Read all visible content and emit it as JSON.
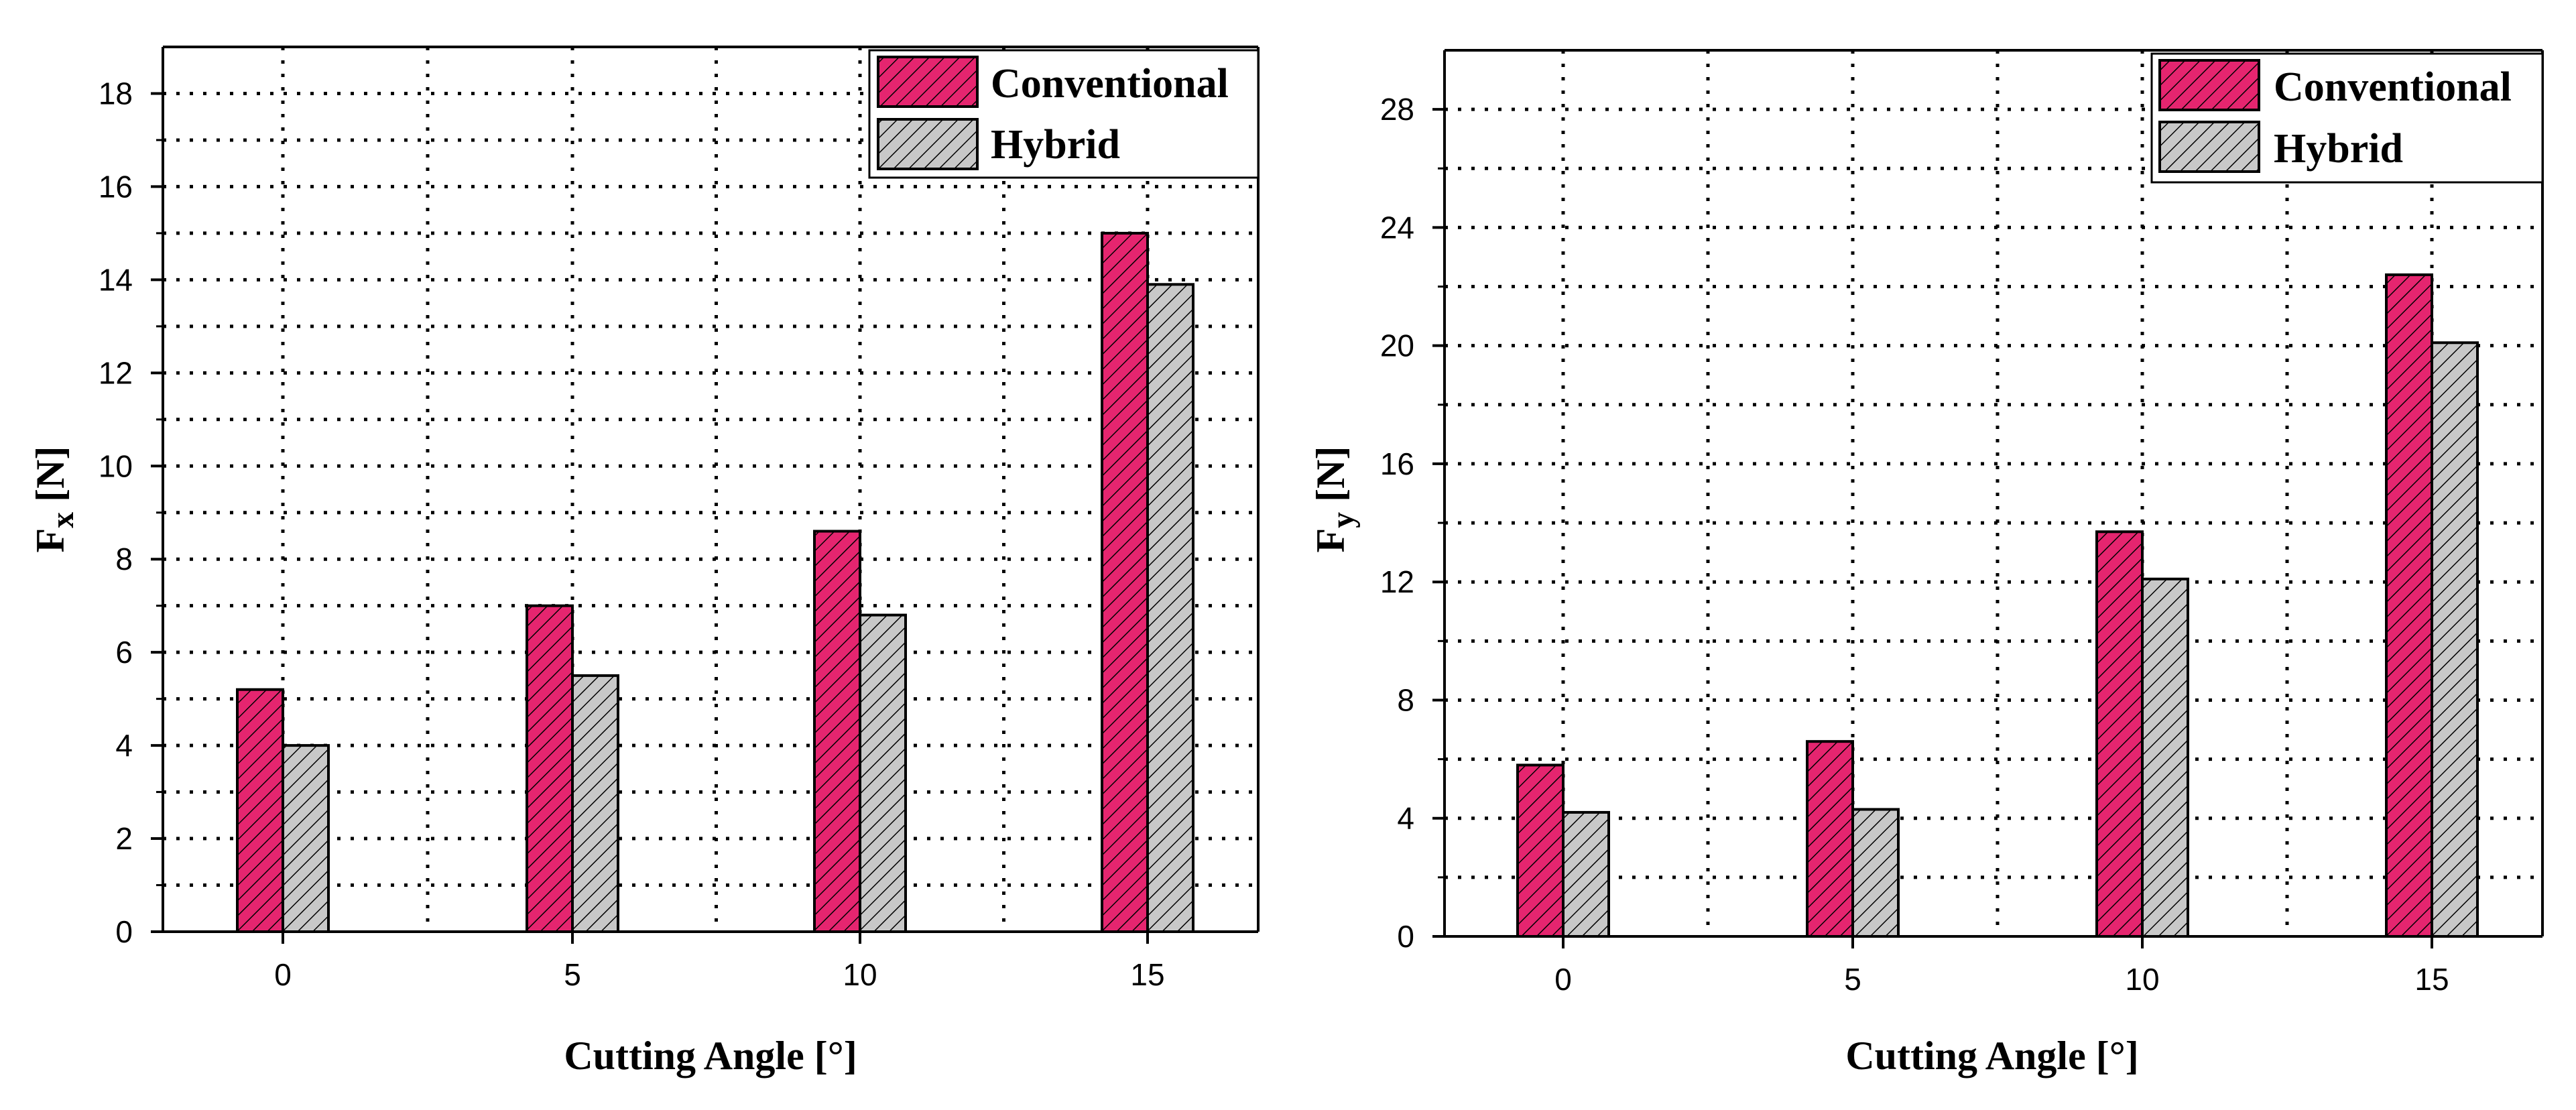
{
  "chart_data": [
    {
      "type": "bar",
      "title": "",
      "xlabel": "Cutting Angle [°]",
      "ylabel_main": "F",
      "ylabel_sub": "x",
      "ylabel_unit": " [N]",
      "categories": [
        "0",
        "5",
        "10",
        "15"
      ],
      "series": [
        {
          "name": "Conventional",
          "values": [
            5.2,
            7.0,
            8.6,
            15.0
          ]
        },
        {
          "name": "Hybrid",
          "values": [
            4.0,
            5.5,
            6.8,
            13.9
          ]
        }
      ],
      "ylim": [
        0,
        19
      ],
      "yticks": [
        0,
        2,
        4,
        6,
        8,
        10,
        12,
        14,
        16,
        18
      ],
      "grid": true,
      "legend": "top-right"
    },
    {
      "type": "bar",
      "title": "",
      "xlabel": "Cutting Angle [°]",
      "ylabel_main": "F",
      "ylabel_sub": "y",
      "ylabel_unit": " [N]",
      "categories": [
        "0",
        "5",
        "10",
        "15"
      ],
      "series": [
        {
          "name": "Conventional",
          "values": [
            5.8,
            6.6,
            13.7,
            22.4
          ]
        },
        {
          "name": "Hybrid",
          "values": [
            4.2,
            4.3,
            12.1,
            20.1
          ]
        }
      ],
      "ylim": [
        0,
        30
      ],
      "yticks": [
        0,
        4,
        8,
        12,
        16,
        20,
        24,
        28
      ],
      "grid": true,
      "legend": "top-right"
    }
  ],
  "colors": {
    "conventional": "#e5256f",
    "hybrid": "#c8c8c8",
    "axis": "#000000",
    "grid": "#000000"
  }
}
